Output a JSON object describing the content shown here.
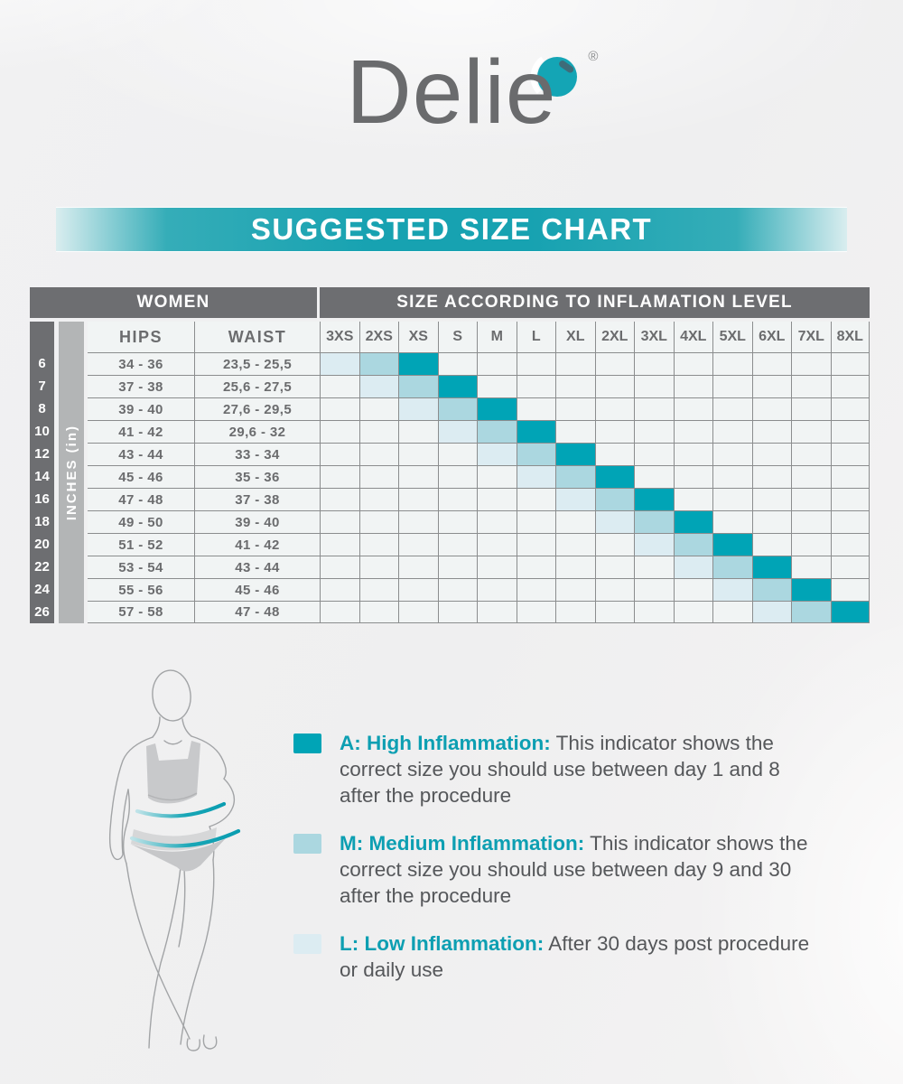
{
  "logo": {
    "text": "Delie",
    "registered": "®"
  },
  "banner": {
    "title": "SUGGESTED SIZE CHART"
  },
  "table": {
    "women_header": "WOMEN",
    "size_header": "SIZE ACCORDING TO INFLAMATION LEVEL",
    "unit_label": "INCHES (in)",
    "columns": {
      "hips": "HIPS",
      "waist": "WAIST"
    },
    "sizes": [
      "3XS",
      "2XS",
      "XS",
      "S",
      "M",
      "L",
      "XL",
      "2XL",
      "3XL",
      "4XL",
      "5XL",
      "6XL",
      "7XL",
      "8XL"
    ],
    "rows": [
      {
        "size": "6",
        "hips": "34 - 36",
        "waist": "23,5 - 25,5",
        "low": "3XS",
        "medium": "2XS",
        "high": "XS"
      },
      {
        "size": "7",
        "hips": "37 - 38",
        "waist": "25,6 - 27,5",
        "low": "2XS",
        "medium": "XS",
        "high": "S"
      },
      {
        "size": "8",
        "hips": "39 - 40",
        "waist": "27,6 - 29,5",
        "low": "XS",
        "medium": "S",
        "high": "M"
      },
      {
        "size": "10",
        "hips": "41 - 42",
        "waist": "29,6 - 32",
        "low": "S",
        "medium": "M",
        "high": "L"
      },
      {
        "size": "12",
        "hips": "43 - 44",
        "waist": "33 - 34",
        "low": "M",
        "medium": "L",
        "high": "XL"
      },
      {
        "size": "14",
        "hips": "45 - 46",
        "waist": "35 - 36",
        "low": "L",
        "medium": "XL",
        "high": "2XL"
      },
      {
        "size": "16",
        "hips": "47 - 48",
        "waist": "37 - 38",
        "low": "XL",
        "medium": "2XL",
        "high": "3XL"
      },
      {
        "size": "18",
        "hips": "49 - 50",
        "waist": "39 - 40",
        "low": "2XL",
        "medium": "3XL",
        "high": "4XL"
      },
      {
        "size": "20",
        "hips": "51 - 52",
        "waist": "41 - 42",
        "low": "3XL",
        "medium": "4XL",
        "high": "5XL"
      },
      {
        "size": "22",
        "hips": "53 - 54",
        "waist": "43 - 44",
        "low": "4XL",
        "medium": "5XL",
        "high": "6XL"
      },
      {
        "size": "24",
        "hips": "55 - 56",
        "waist": "45 - 46",
        "low": "5XL",
        "medium": "6XL",
        "high": "7XL"
      },
      {
        "size": "26",
        "hips": "57 - 58",
        "waist": "47 - 48",
        "low": "6XL",
        "medium": "7XL",
        "high": "8XL"
      }
    ]
  },
  "legend": [
    {
      "label": "A: High Inflammation:",
      "text": " This indicator shows the correct size you should use between day 1 and 8 after the procedure",
      "color": "#00a4b6"
    },
    {
      "label": "M: Medium Inflammation:",
      "text": " This indicator shows the correct size you should use between day 9 and 30 after the procedure",
      "color": "#abd7e0"
    },
    {
      "label": "L: Low Inflammation:",
      "text": " After 30 days post procedure or daily use",
      "color": "#dcecf2"
    }
  ],
  "colors": {
    "accent_teal": "#00a4b6",
    "medium_teal": "#abd7e0",
    "low_blue": "#dcecf2",
    "header_gray": "#6d6e71",
    "inches_bar_gray": "#b3b5b6",
    "grid_line": "#8b8d8e",
    "text_gray": "#6b6c6e"
  }
}
